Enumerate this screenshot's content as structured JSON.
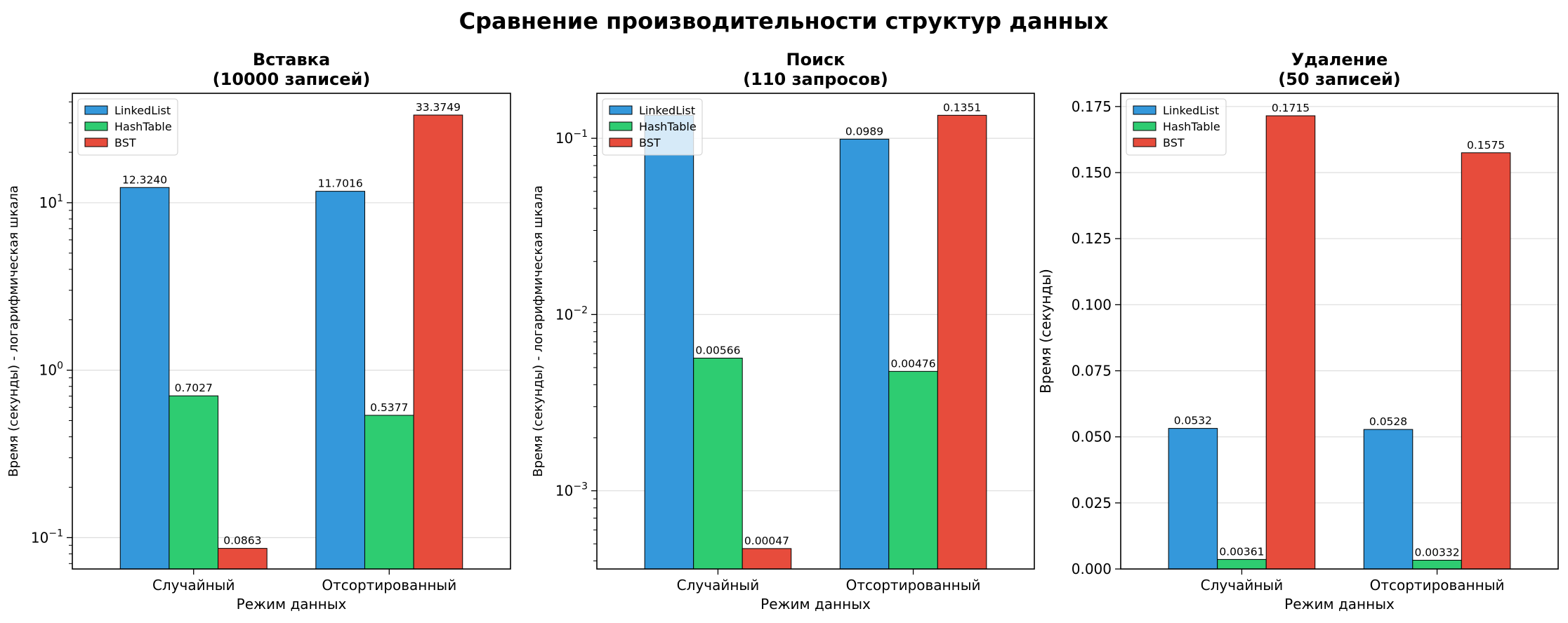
{
  "figure": {
    "suptitle": "Сравнение производительности структур данных"
  },
  "colors": {
    "LinkedList": "#3498db",
    "HashTable": "#2ecc71",
    "BST": "#e74c3c",
    "edge": "#000000",
    "grid": "#dddddd"
  },
  "chart_data": [
    {
      "type": "bar",
      "title": "Вставка\n(10000 записей)",
      "xlabel": "Режим данных",
      "ylabel": "Время (секунды) - логарифмическая шкала",
      "yscale": "log",
      "ylim": [
        0.065,
        45
      ],
      "yticks": [
        {
          "v": 0.1,
          "base": "10",
          "exp": "−1"
        },
        {
          "v": 1,
          "base": "10",
          "exp": "0"
        },
        {
          "v": 10,
          "base": "10",
          "exp": "1"
        }
      ],
      "grid": "y",
      "legend": "top-left",
      "categories": [
        "Случайный",
        "Отсортированный"
      ],
      "series": [
        {
          "name": "LinkedList",
          "values": [
            12.324,
            11.7016
          ],
          "labels": [
            "12.3240",
            "11.7016"
          ]
        },
        {
          "name": "HashTable",
          "values": [
            0.7027,
            0.5377
          ],
          "labels": [
            "0.7027",
            "0.5377"
          ]
        },
        {
          "name": "BST",
          "values": [
            0.0863,
            33.3749
          ],
          "labels": [
            "0.0863",
            "33.3749"
          ]
        }
      ]
    },
    {
      "type": "bar",
      "title": "Поиск\n(110 запросов)",
      "xlabel": "Режим данных",
      "ylabel": "Время (секунды) - логарифмическая шкала",
      "yscale": "log",
      "ylim": [
        0.00036,
        0.18
      ],
      "yticks": [
        {
          "v": 0.001,
          "base": "10",
          "exp": "−3"
        },
        {
          "v": 0.01,
          "base": "10",
          "exp": "−2"
        },
        {
          "v": 0.1,
          "base": "10",
          "exp": "−1"
        }
      ],
      "grid": "y",
      "legend": "top-left",
      "categories": [
        "Случайный",
        "Отсортированный"
      ],
      "series": [
        {
          "name": "LinkedList",
          "values": [
            0.135,
            0.0989
          ],
          "labels": [
            "",
            "0.0989"
          ]
        },
        {
          "name": "HashTable",
          "values": [
            0.00566,
            0.00476
          ],
          "labels": [
            "0.00566",
            "0.00476"
          ]
        },
        {
          "name": "BST",
          "values": [
            0.00047,
            0.1351
          ],
          "labels": [
            "0.00047",
            "0.1351"
          ]
        }
      ]
    },
    {
      "type": "bar",
      "title": "Удаление\n(50 записей)",
      "xlabel": "Режим данных",
      "ylabel": "Время (секунды)",
      "yscale": "linear",
      "ylim": [
        0,
        0.18
      ],
      "yticks": [
        {
          "v": 0,
          "t": "0.000"
        },
        {
          "v": 0.025,
          "t": "0.025"
        },
        {
          "v": 0.05,
          "t": "0.050"
        },
        {
          "v": 0.075,
          "t": "0.075"
        },
        {
          "v": 0.1,
          "t": "0.100"
        },
        {
          "v": 0.125,
          "t": "0.125"
        },
        {
          "v": 0.15,
          "t": "0.150"
        },
        {
          "v": 0.175,
          "t": "0.175"
        }
      ],
      "grid": "y",
      "legend": "top-left",
      "categories": [
        "Случайный",
        "Отсортированный"
      ],
      "series": [
        {
          "name": "LinkedList",
          "values": [
            0.0532,
            0.0528
          ],
          "labels": [
            "0.0532",
            "0.0528"
          ]
        },
        {
          "name": "HashTable",
          "values": [
            0.00361,
            0.00332
          ],
          "labels": [
            "0.00361",
            "0.00332"
          ]
        },
        {
          "name": "BST",
          "values": [
            0.1715,
            0.1575
          ],
          "labels": [
            "0.1715",
            "0.1575"
          ]
        }
      ]
    }
  ]
}
